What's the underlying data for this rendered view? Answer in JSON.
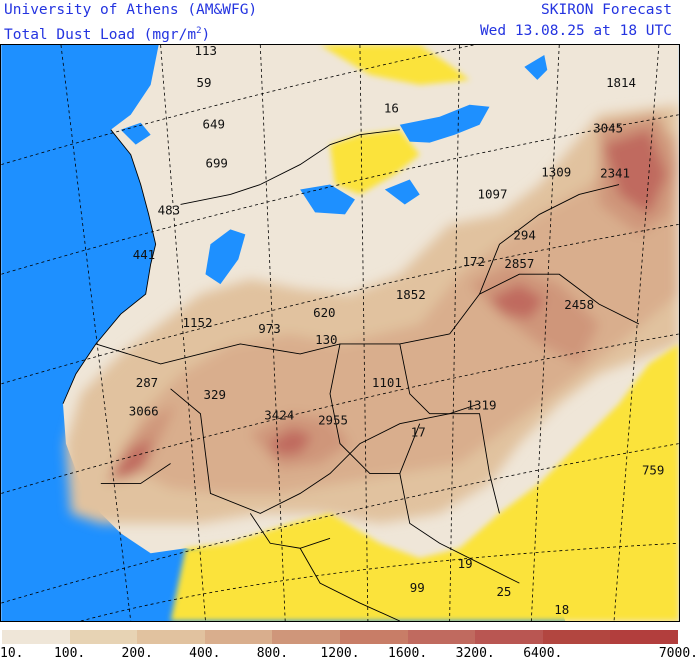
{
  "header": {
    "institution": "University of Athens (AM&WFG)",
    "variable_prefix": "Total Dust Load (mgr/m",
    "variable_sup": "2",
    "variable_suffix": ")",
    "forecast": "SKIRON Forecast",
    "valid_time": "Wed 13.08.25 at 18 UTC"
  },
  "colors": {
    "sea": "#1e90ff",
    "land_low": "#f0e6d6",
    "yellow_no_dust": "#fbe33a",
    "border": "#000000"
  },
  "map_labels": [
    {
      "id": "lbl-europe-nw",
      "text": "113"
    },
    {
      "id": "lbl-france",
      "text": "59"
    },
    {
      "id": "lbl-balkans-n",
      "text": "16"
    },
    {
      "id": "lbl-russia",
      "text": "1814"
    },
    {
      "id": "lbl-caspian-n",
      "text": "3045"
    },
    {
      "id": "lbl-iberia-n",
      "text": "649"
    },
    {
      "id": "lbl-iberia-c",
      "text": "699"
    },
    {
      "id": "lbl-caucasus",
      "text": "1309"
    },
    {
      "id": "lbl-caspian-e",
      "text": "2341"
    },
    {
      "id": "lbl-turkey",
      "text": "1097"
    },
    {
      "id": "lbl-portugal",
      "text": "483"
    },
    {
      "id": "lbl-levant",
      "text": "294"
    },
    {
      "id": "lbl-morocco-n",
      "text": "441"
    },
    {
      "id": "lbl-egypt",
      "text": "172"
    },
    {
      "id": "lbl-iraq",
      "text": "2857"
    },
    {
      "id": "lbl-libya",
      "text": "1852"
    },
    {
      "id": "lbl-gulf",
      "text": "2458"
    },
    {
      "id": "lbl-tunisia",
      "text": "620"
    },
    {
      "id": "lbl-algeria-n",
      "text": "1152"
    },
    {
      "id": "lbl-algeria-c",
      "text": "973"
    },
    {
      "id": "lbl-libya-w",
      "text": "130"
    },
    {
      "id": "lbl-chad",
      "text": "1101"
    },
    {
      "id": "lbl-canary",
      "text": "287"
    },
    {
      "id": "lbl-mali-n",
      "text": "329"
    },
    {
      "id": "lbl-sudan",
      "text": "1319"
    },
    {
      "id": "lbl-w-sahara",
      "text": "3066"
    },
    {
      "id": "lbl-niger",
      "text": "3424"
    },
    {
      "id": "lbl-niger-e",
      "text": "2955"
    },
    {
      "id": "lbl-chad-s",
      "text": "17"
    },
    {
      "id": "lbl-horn",
      "text": "759"
    },
    {
      "id": "lbl-cameroon",
      "text": "19"
    },
    {
      "id": "lbl-gabon",
      "text": "99"
    },
    {
      "id": "lbl-congo",
      "text": "25"
    },
    {
      "id": "lbl-angola",
      "text": "18"
    }
  ],
  "legend": {
    "bins": [
      {
        "color": "#efe6d8"
      },
      {
        "color": "#e7d3b4"
      },
      {
        "color": "#e1c29f"
      },
      {
        "color": "#d9ae8d"
      },
      {
        "color": "#cf967a"
      },
      {
        "color": "#c87d67"
      },
      {
        "color": "#c06a5f"
      },
      {
        "color": "#b95652"
      },
      {
        "color": "#b24640"
      },
      {
        "color": "#b23e3d"
      }
    ],
    "ticks": [
      "10.",
      "100.",
      "200.",
      "400.",
      "800.",
      "1200.",
      "1600.",
      "3200.",
      "6400.",
      "7000."
    ]
  }
}
